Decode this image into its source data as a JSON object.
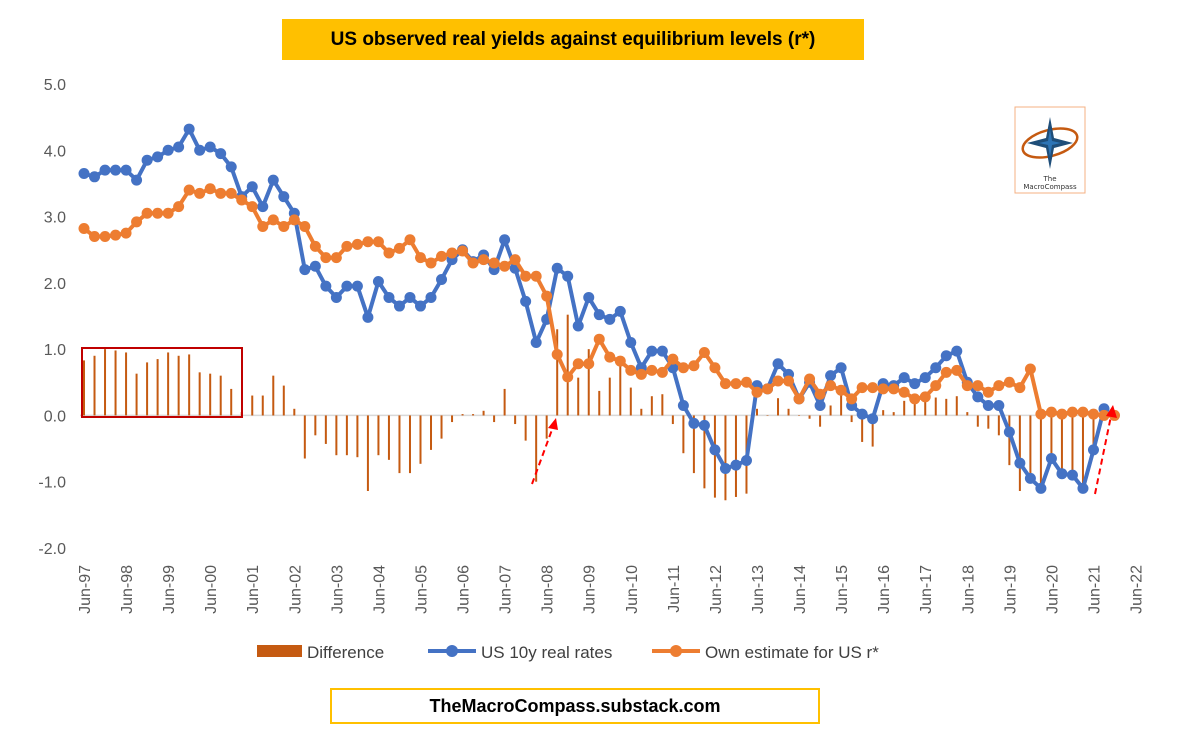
{
  "title": "US observed real yields against equilibrium levels (r*)",
  "footer": "TheMacroCompass.substack.com",
  "logo": {
    "line1": "The",
    "line2": "MacroCompass"
  },
  "colors": {
    "real": "#4472c4",
    "rstar": "#ed7d31",
    "diff": "#c55a11",
    "highlight": "#c00000",
    "arrow": "#ff0000",
    "title_bg": "#ffc000"
  },
  "chart_data": {
    "type": "line",
    "title": "US observed real yields against equilibrium levels (r*)",
    "ylim": [
      -2.0,
      5.0
    ],
    "yticks": [
      "5.0",
      "4.0",
      "3.0",
      "2.0",
      "1.0",
      "0.0",
      "-1.0",
      "-2.0"
    ],
    "xtick_labels": [
      "Jun-97",
      "Jun-98",
      "Jun-99",
      "Jun-00",
      "Jun-01",
      "Jun-02",
      "Jun-03",
      "Jun-04",
      "Jun-05",
      "Jun-06",
      "Jun-07",
      "Jun-08",
      "Jun-09",
      "Jun-10",
      "Jun-11",
      "Jun-12",
      "Jun-13",
      "Jun-14",
      "Jun-15",
      "Jun-16",
      "Jun-17",
      "Jun-18",
      "Jun-19",
      "Jun-20",
      "Jun-21",
      "Jun-22"
    ],
    "x_start": "Jun-97",
    "x_step": "quarterly",
    "legend": [
      "Difference",
      "US 10y real rates",
      "Own estimate for US r*"
    ],
    "legend_position": "bottom",
    "series": [
      {
        "name": "US 10y real rates",
        "type": "line",
        "values": [
          3.65,
          3.6,
          3.7,
          3.7,
          3.7,
          3.55,
          3.85,
          3.9,
          4.0,
          4.05,
          4.32,
          4.0,
          4.05,
          3.95,
          3.75,
          3.3,
          3.45,
          3.15,
          3.55,
          3.3,
          3.05,
          2.2,
          2.25,
          1.95,
          1.78,
          1.95,
          1.95,
          1.48,
          2.02,
          1.78,
          1.65,
          1.78,
          1.65,
          1.78,
          2.05,
          2.35,
          2.5,
          2.32,
          2.42,
          2.2,
          2.65,
          2.22,
          1.72,
          1.1,
          1.45,
          2.22,
          2.1,
          1.35,
          1.78,
          1.52,
          1.45,
          1.57,
          1.1,
          0.72,
          0.97,
          0.97,
          0.72,
          0.15,
          -0.12,
          -0.15,
          -0.52,
          -0.8,
          -0.75,
          -0.68,
          0.45,
          0.4,
          0.78,
          0.62,
          0.25,
          0.5,
          0.15,
          0.6,
          0.72,
          0.15,
          0.02,
          -0.05,
          0.48,
          0.45,
          0.57,
          0.48,
          0.57,
          0.72,
          0.9,
          0.97,
          0.5,
          0.28,
          0.15,
          0.15,
          -0.25,
          -0.72,
          -0.95,
          -1.1,
          -0.65,
          -0.88,
          -0.9,
          -1.1,
          -0.52,
          0.1
        ]
      },
      {
        "name": "Own estimate for US r*",
        "type": "line",
        "values": [
          2.82,
          2.7,
          2.7,
          2.72,
          2.75,
          2.92,
          3.05,
          3.05,
          3.05,
          3.15,
          3.4,
          3.35,
          3.42,
          3.35,
          3.35,
          3.25,
          3.15,
          2.85,
          2.95,
          2.85,
          2.95,
          2.85,
          2.55,
          2.38,
          2.38,
          2.55,
          2.58,
          2.62,
          2.62,
          2.45,
          2.52,
          2.65,
          2.38,
          2.3,
          2.4,
          2.45,
          2.48,
          2.3,
          2.35,
          2.3,
          2.25,
          2.35,
          2.1,
          2.1,
          1.8,
          0.92,
          0.58,
          0.78,
          0.78,
          1.15,
          0.88,
          0.82,
          0.68,
          0.62,
          0.68,
          0.65,
          0.85,
          0.72,
          0.75,
          0.95,
          0.72,
          0.48,
          0.48,
          0.5,
          0.35,
          0.4,
          0.52,
          0.52,
          0.25,
          0.55,
          0.32,
          0.45,
          0.38,
          0.25,
          0.42,
          0.42,
          0.4,
          0.4,
          0.35,
          0.25,
          0.28,
          0.45,
          0.65,
          0.68,
          0.45,
          0.45,
          0.35,
          0.45,
          0.5,
          0.42,
          0.7,
          0.02,
          0.05,
          0.02,
          0.05,
          0.05,
          0.02,
          0.0,
          0.0
        ]
      },
      {
        "name": "Difference",
        "type": "bar",
        "values": [
          0.83,
          0.9,
          1.0,
          0.98,
          0.95,
          0.63,
          0.8,
          0.85,
          0.95,
          0.9,
          0.92,
          0.65,
          0.63,
          0.6,
          0.4,
          0.05,
          0.3,
          0.3,
          0.6,
          0.45,
          0.1,
          -0.65,
          -0.3,
          -0.43,
          -0.6,
          -0.6,
          -0.63,
          -1.14,
          -0.6,
          -0.67,
          -0.87,
          -0.87,
          -0.73,
          -0.52,
          -0.35,
          -0.1,
          0.02,
          0.02,
          0.07,
          -0.1,
          0.4,
          -0.13,
          -0.38,
          -1.0,
          -0.35,
          1.3,
          1.52,
          0.57,
          1.0,
          0.37,
          0.57,
          0.75,
          0.42,
          0.1,
          0.29,
          0.32,
          -0.13,
          -0.57,
          -0.87,
          -1.1,
          -1.24,
          -1.28,
          -1.23,
          -1.18,
          0.1,
          0.0,
          0.26,
          0.1,
          0.0,
          -0.05,
          -0.17,
          0.15,
          0.34,
          -0.1,
          -0.4,
          -0.47,
          0.08,
          0.05,
          0.22,
          0.23,
          0.29,
          0.27,
          0.25,
          0.29,
          0.05,
          -0.17,
          -0.2,
          -0.3,
          -0.75,
          -1.14,
          -1.0,
          -1.12,
          -0.7,
          -0.93,
          -0.95,
          -1.12,
          -0.52,
          0.1
        ]
      }
    ]
  }
}
